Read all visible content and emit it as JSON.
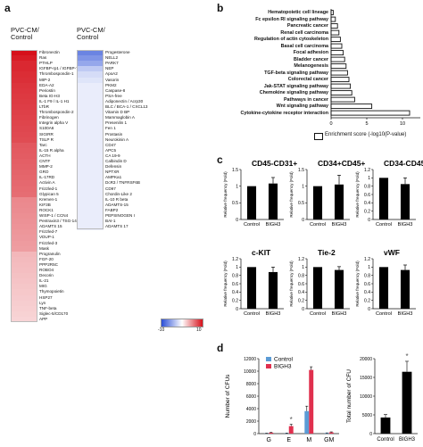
{
  "panels": {
    "a": "a",
    "b": "b",
    "c": "c",
    "d": "d"
  },
  "heatmap": {
    "left_title": [
      "PVC-CM/",
      "Control"
    ],
    "right_title": [
      "PVC-CM/",
      "Control"
    ],
    "left_labels": [
      "Fibronectin",
      "Ras",
      "PTHLP",
      "IGFBP-rp1 / IGFBP-7",
      "Thrombospondin-1",
      "MIP-2",
      "EDA-A2",
      "Periostin",
      "Beta IG-H3",
      "IL-1 F9 / IL-1 H1",
      "LTbR",
      "Thrombospondin-2",
      "Fibrinogen",
      "Integrin alpha V",
      "S100A6",
      "SIGIRR",
      "TSLP R",
      "Tarc",
      "IL-15 R alpha",
      "ACTH",
      "CNTF",
      "MMP-2",
      "GRO",
      "IL-17RD",
      "Activin A",
      "Frizzled-1",
      "Glypican 5",
      "Kremen-1",
      "KIF3B",
      "ROCK1",
      "WISP-1 / CCN4",
      "Pentraxin3 / TSG-14",
      "ADAMTS 15",
      "Frizzled-7",
      "VDUP-1",
      "Frizzled-3",
      "Mask",
      "Progranulin",
      "FGF-20",
      "PPP2R5C",
      "ROBO4",
      "Decorin",
      "IL-21",
      "MIG",
      "Thymopoietin",
      "HSP27",
      "Lyn",
      "TNF-beta",
      "Siglec-5/CD170",
      "APP"
    ],
    "right_labels": [
      "Progesterone",
      "NELL2",
      "PARK7",
      "NEP",
      "ApoA2",
      "Vasorin",
      "PKM2",
      "Caspase-8",
      "PSA-free",
      "Adiponectin / Acrp30",
      "BLC / BCA-1 / CXCL13",
      "Vitamin D BP",
      "Mammaglobin A",
      "Presenilin 1",
      "Fen 1",
      "Prostasin",
      "Neurokinin A",
      "CD47",
      "APC5",
      "CA 19-9",
      "Calbindin D",
      "Defensin",
      "NPTXR",
      "AMPKa1",
      "DcR3 / TNFRSF6B",
      "CD97",
      "Chordin-Like 2",
      "IL-10 R beta",
      "ADAMTS-15",
      "FABP2",
      "PEPSINOGEN I",
      "BAI-1",
      "ADAMTS 17"
    ],
    "left_levels": [
      10,
      9.5,
      9,
      9,
      8.8,
      8.7,
      8.5,
      8.4,
      8.3,
      8.2,
      8.1,
      8,
      7.9,
      7.8,
      7.7,
      7.6,
      7.5,
      7,
      6.9,
      6.8,
      6.7,
      6.6,
      6.5,
      6.4,
      6.3,
      6.2,
      6.1,
      5,
      4.9,
      4.8,
      4.7,
      4.6,
      4.5,
      4.4,
      4.3,
      4.2,
      4.1,
      3,
      2.9,
      2.8,
      2.7,
      2.6,
      2.5,
      2.4,
      2.3,
      2.2,
      2.1,
      2,
      1.9,
      1.8
    ],
    "right_levels": [
      -7,
      -6,
      -5,
      -3,
      -2,
      -1.5,
      -1,
      -1,
      -1,
      -1,
      -1,
      -1,
      -1,
      -1,
      -1,
      -1,
      -1,
      -1,
      -1,
      -1,
      -1,
      -1,
      -1,
      -1,
      -1,
      -1,
      -1,
      -1,
      -1,
      -1,
      -1,
      -1,
      -1
    ],
    "scale": {
      "min_label": "-10",
      "max_label": "10",
      "min": -10,
      "max": 10
    }
  },
  "pathways": {
    "labels": [
      "Hematopoietic cell lineage",
      "Fc epsilon RI signaling pathway",
      "Pancreatic cancer",
      "Renal cell carcinoma",
      "Regulation of actin cytoskeleton",
      "Basal cell carcinoma",
      "Focal adhesion",
      "Bladder cancer",
      "Melanogenesis",
      "TGF-beta signaling pathway",
      "Colorectal cancer",
      "Jak-STAT signaling pathway",
      "Chemokine signaling pathway",
      "Pathways in cancer",
      "Wnt signaling pathway",
      "Cytokine-cytokine receptor interaction"
    ],
    "values": [
      0.3,
      0.6,
      0.9,
      1.1,
      1.3,
      1.5,
      1.7,
      1.9,
      2.1,
      2.3,
      2.5,
      2.7,
      2.9,
      3.3,
      5.7,
      11.0
    ],
    "xticks": [
      "0",
      "5",
      "10"
    ],
    "xmax": 12,
    "legend": "Enrichment score (-log10(P-value)"
  },
  "chart_data": [
    {
      "type": "bar",
      "title": "CD45-CD31+",
      "categories": [
        "Control",
        "BIGH3"
      ],
      "values": [
        1.0,
        1.08
      ],
      "errors": [
        0.0,
        0.18
      ],
      "ylabel": "Relative frequency (Fold)",
      "ylim": [
        0,
        1.5
      ],
      "yticks": [
        "0",
        "0.5",
        "1",
        "1.5"
      ]
    },
    {
      "type": "bar",
      "title": "CD34+CD45+",
      "categories": [
        "Control",
        "BIGH3"
      ],
      "values": [
        1.0,
        1.05
      ],
      "errors": [
        0.0,
        0.28
      ],
      "ylabel": "Relative frequency (Fold)",
      "ylim": [
        0,
        1.5
      ],
      "yticks": [
        "0",
        "0.5",
        "1",
        "1.5"
      ]
    },
    {
      "type": "bar",
      "title": "CD34-CD45-",
      "categories": [
        "Control",
        "BIGH3"
      ],
      "values": [
        1.0,
        0.85
      ],
      "errors": [
        0.0,
        0.15
      ],
      "ylabel": "Relative frequency (Fold)",
      "ylim": [
        0,
        1.2
      ],
      "yticks": [
        "0",
        "0.2",
        "0.4",
        "0.6",
        "0.8",
        "1",
        "1.2"
      ]
    },
    {
      "type": "bar",
      "title": "c-KIT",
      "categories": [
        "Control",
        "BIGH3"
      ],
      "values": [
        1.0,
        0.88
      ],
      "errors": [
        0.0,
        0.12
      ],
      "ylabel": "Relative frequency (Fold)",
      "ylim": [
        0,
        1.2
      ],
      "yticks": [
        "0",
        "0.2",
        "0.4",
        "0.6",
        "0.8",
        "1",
        "1.2"
      ]
    },
    {
      "type": "bar",
      "title": "Tie-2",
      "categories": [
        "Control",
        "BIGH3"
      ],
      "values": [
        1.0,
        0.93
      ],
      "errors": [
        0.0,
        0.08
      ],
      "ylabel": "Relative frequency (Fold)",
      "ylim": [
        0,
        1.2
      ],
      "yticks": [
        "0",
        "0.2",
        "0.4",
        "0.6",
        "0.8",
        "1",
        "1.2"
      ]
    },
    {
      "type": "bar",
      "title": "vWF",
      "categories": [
        "Control",
        "BIGH3"
      ],
      "values": [
        1.0,
        0.93
      ],
      "errors": [
        0.0,
        0.12
      ],
      "ylabel": "Relative frequency (Fold)",
      "ylim": [
        0,
        1.2
      ],
      "yticks": [
        "0",
        "0.2",
        "0.4",
        "0.6",
        "0.8",
        "1",
        "1.2"
      ]
    },
    {
      "type": "bar",
      "categories": [
        "G",
        "E",
        "M",
        "GM"
      ],
      "series": [
        {
          "name": "Control",
          "color": "#5b9bd5",
          "values": [
            50,
            60,
            3600,
            80
          ],
          "errors": [
            20,
            30,
            800,
            40
          ]
        },
        {
          "name": "BIGH3",
          "color": "#e0304e",
          "values": [
            150,
            1200,
            10200,
            200
          ],
          "errors": [
            50,
            300,
            500,
            80
          ]
        }
      ],
      "ylabel": "Number of CFUs",
      "ylim": [
        0,
        12000
      ],
      "yticks": [
        "0",
        "2000",
        "4000",
        "6000",
        "8000",
        "10000",
        "12000"
      ],
      "annotations": [
        "*"
      ]
    },
    {
      "type": "bar",
      "categories": [
        "Control",
        "BIGH3"
      ],
      "values": [
        4300,
        16500
      ],
      "errors": [
        800,
        2800
      ],
      "ylabel": "Total number of CFU",
      "ylim": [
        0,
        20000
      ],
      "yticks": [
        "0",
        "5000",
        "10000",
        "15000",
        "20000"
      ],
      "annotations": [
        "*"
      ]
    }
  ]
}
